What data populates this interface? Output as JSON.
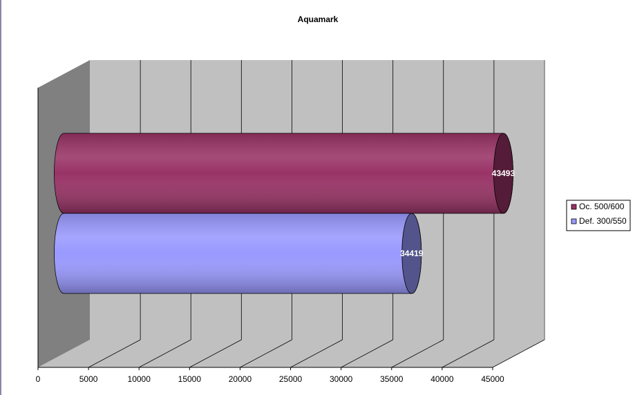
{
  "chart_data": {
    "type": "bar",
    "orientation": "horizontal",
    "title": "Aquamark",
    "categories": [
      null
    ],
    "series": [
      {
        "name": "Oc. 500/600",
        "color": "#993366",
        "values": [
          43493
        ]
      },
      {
        "name": "Def. 300/550",
        "color": "#9999ff",
        "values": [
          34419
        ]
      }
    ],
    "xlim": [
      0,
      45000
    ],
    "xticks": [
      0,
      5000,
      10000,
      15000,
      20000,
      25000,
      30000,
      35000,
      40000,
      45000
    ],
    "grid": true,
    "legend": "right"
  }
}
